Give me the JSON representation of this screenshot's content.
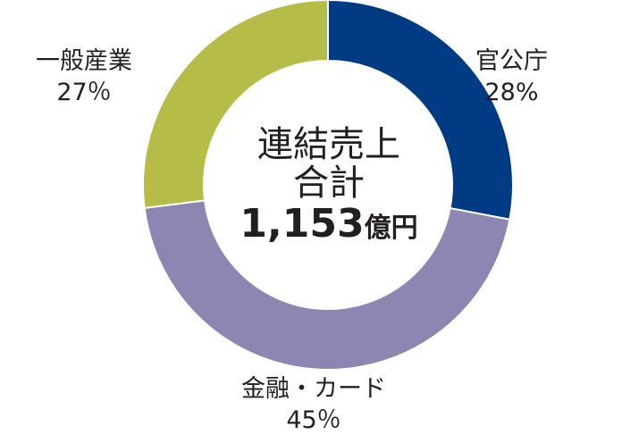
{
  "chart_data": {
    "type": "pie",
    "donut": true,
    "categories": [
      "官公庁",
      "金融・カード",
      "一般産業"
    ],
    "values": [
      28,
      45,
      27
    ],
    "value_labels": [
      "28%",
      "45％",
      "27％"
    ],
    "colors": [
      "#003b84",
      "#8e86b2",
      "#b5bc48"
    ],
    "center_text": {
      "line1": "連結売上",
      "line2": "合計",
      "amount": "1,153",
      "unit": "億円"
    }
  }
}
